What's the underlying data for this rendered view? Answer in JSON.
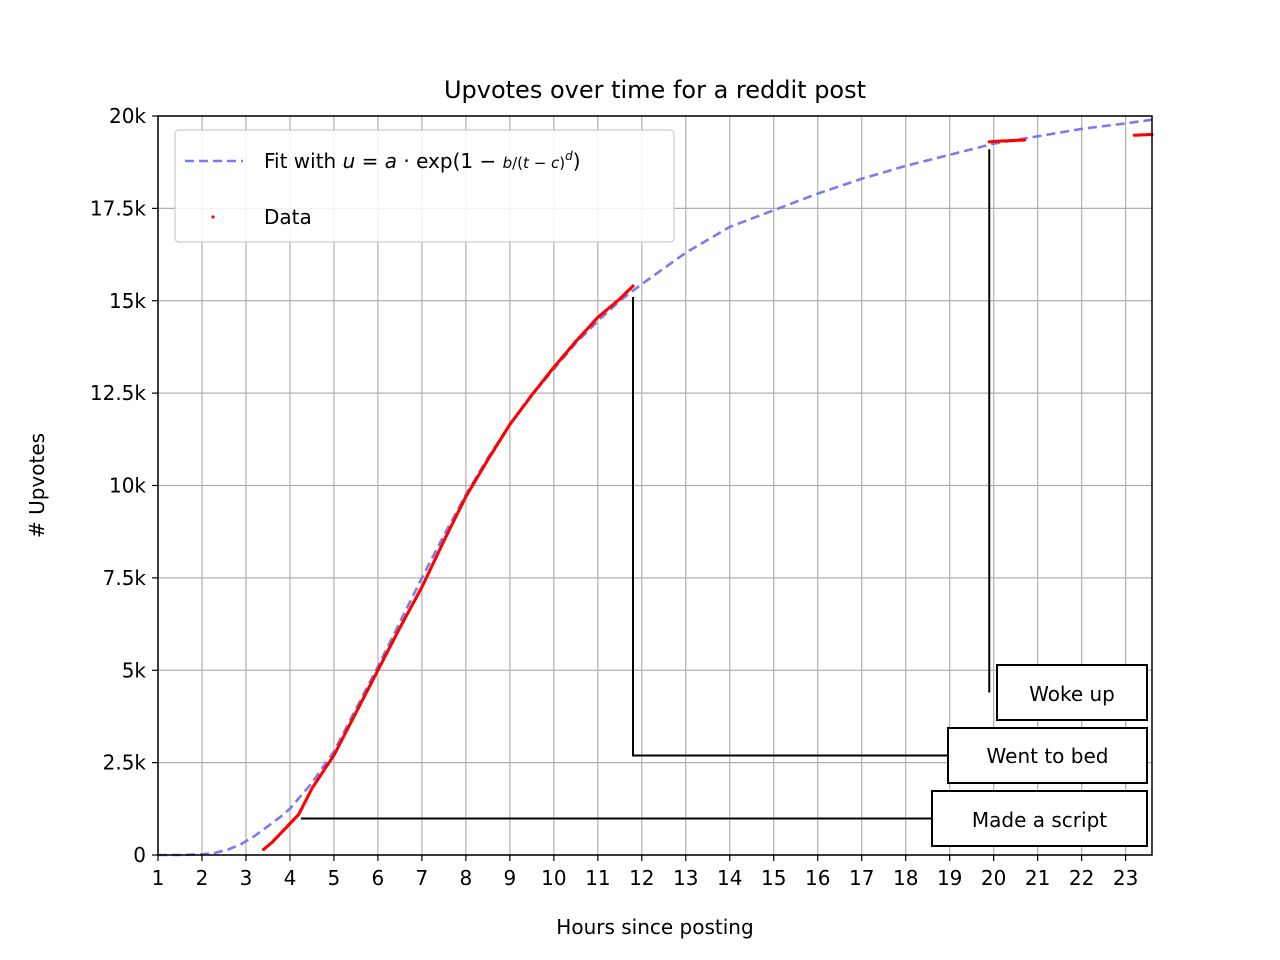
{
  "chart_data": {
    "type": "line",
    "title": "Upvotes over time for a reddit post",
    "xlabel": "Hours since posting",
    "ylabel": "# Upvotes",
    "xlim": [
      1,
      23.6
    ],
    "ylim": [
      0,
      20000
    ],
    "x_ticks": [
      1,
      2,
      3,
      4,
      5,
      6,
      7,
      8,
      9,
      10,
      11,
      12,
      13,
      14,
      15,
      16,
      17,
      18,
      19,
      20,
      21,
      22,
      23
    ],
    "x_tick_labels": [
      "1",
      "2",
      "3",
      "4",
      "5",
      "6",
      "7",
      "8",
      "9",
      "10",
      "11",
      "12",
      "13",
      "14",
      "15",
      "16",
      "17",
      "18",
      "19",
      "20",
      "21",
      "22",
      "23"
    ],
    "y_ticks": [
      0,
      2500,
      5000,
      7500,
      10000,
      12500,
      15000,
      17500,
      20000
    ],
    "y_tick_labels": [
      "0",
      "2.5k",
      "5k",
      "7.5k",
      "10k",
      "12.5k",
      "15k",
      "17.5k",
      "20k"
    ],
    "grid": true,
    "legend_position": "top-left",
    "series": [
      {
        "name": "Fit with u = a · exp(1 − b/(t − c)^d)",
        "kind": "fit-line",
        "style": "dashed",
        "color": "#7b7bf0",
        "x": [
          1,
          1.5,
          2,
          2.3,
          2.6,
          2.9,
          3.2,
          3.5,
          3.8,
          4,
          4.5,
          5,
          5.5,
          6,
          6.5,
          7,
          7.5,
          8,
          8.5,
          9,
          9.5,
          10,
          10.5,
          11,
          11.5,
          12,
          13,
          14,
          15,
          16,
          17,
          18,
          19,
          20,
          21,
          22,
          23,
          23.6
        ],
        "y": [
          0,
          0,
          20,
          60,
          150,
          300,
          520,
          780,
          1050,
          1250,
          1950,
          2800,
          3950,
          5100,
          6300,
          7500,
          8650,
          9750,
          10750,
          11650,
          12450,
          13150,
          13850,
          14450,
          15000,
          15450,
          16300,
          17000,
          17450,
          17900,
          18300,
          18650,
          18950,
          19250,
          19450,
          19650,
          19800,
          19900
        ]
      },
      {
        "name": "Data",
        "kind": "scatter",
        "color": "#ff0000",
        "segments": [
          {
            "x": [
              3.4,
              3.6,
              3.8,
              4.0,
              4.2,
              4.5,
              5.0,
              5.5,
              6.0,
              6.5,
              7.0,
              7.5,
              8.0,
              8.5,
              9.0,
              9.5,
              10.0,
              10.5,
              11.0,
              11.5,
              11.8
            ],
            "y": [
              150,
              350,
              600,
              850,
              1100,
              1800,
              2700,
              3850,
              5000,
              6150,
              7250,
              8500,
              9700,
              10700,
              11650,
              12450,
              13200,
              13900,
              14550,
              15050,
              15400
            ]
          },
          {
            "x": [
              19.9,
              20.1,
              20.3,
              20.5,
              20.7
            ],
            "y": [
              19300,
              19320,
              19330,
              19340,
              19350
            ]
          },
          {
            "x": [
              23.2,
              23.4,
              23.6
            ],
            "y": [
              19480,
              19490,
              19500
            ]
          }
        ]
      }
    ],
    "annotations": [
      {
        "text": "Made a script",
        "point": [
          4.25,
          1000
        ]
      },
      {
        "text": "Went to bed",
        "point": [
          11.8,
          15100
        ]
      },
      {
        "text": "Woke up",
        "point": [
          19.9,
          19100
        ]
      }
    ]
  }
}
